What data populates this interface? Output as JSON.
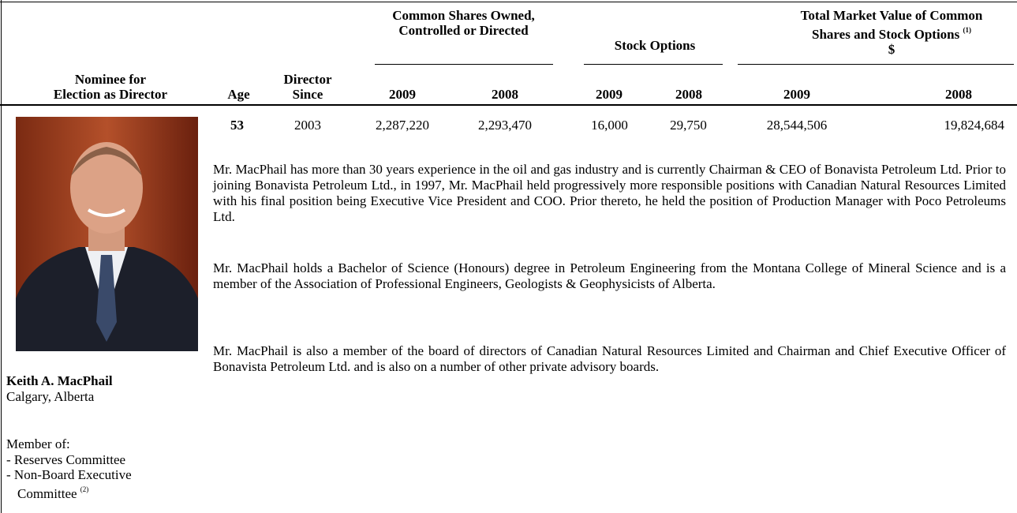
{
  "table": {
    "group_headers": [
      "Common Shares Owned, Controlled or Directed",
      "Stock Options",
      "Total Market Value of Common Shares and Stock Options"
    ],
    "group_header_note": "(1)",
    "currency": "$",
    "column_headers": [
      "Nominee for",
      "Election as Director",
      "Age",
      "Director",
      "Since",
      "2009",
      "2008",
      "2009",
      "2008",
      "2009",
      "2008"
    ],
    "row": [
      "53",
      "2003",
      "2,287,220",
      "2,293,470",
      "16,000",
      "29,750",
      "28,544,506",
      "19,824,684"
    ],
    "nominee": {
      "name": "Keith A. MacPhail",
      "location": "Calgary, Alberta",
      "member_of": "Member of:",
      "committees": [
        "- Reserves Committee",
        "- Non-Board Executive",
        "Committee"
      ],
      "committee_note": "(2)"
    },
    "bio": [
      "Mr. MacPhail has more than 30 years experience in the oil and gas industry and is currently Chairman & CEO of Bonavista Petroleum Ltd.  Prior to joining Bonavista Petroleum Ltd., in 1997, Mr. MacPhail held progressively more responsible positions with Canadian Natural Resources Limited with his final position being Executive Vice President and COO.  Prior thereto, he held the position of Production Manager with Poco Petroleums Ltd.",
      "Mr. MacPhail holds a Bachelor of Science (Honours) degree in Petroleum Engineering from the Montana College of Mineral Science and is a member of the Association of Professional Engineers, Geologists & Geophysicists of Alberta.",
      "Mr. MacPhail is also a member of the board of directors of Canadian Natural Resources Limited and Chairman and Chief Executive Officer of Bonavista Petroleum Ltd. and is also on a number of other private advisory boards."
    ]
  }
}
